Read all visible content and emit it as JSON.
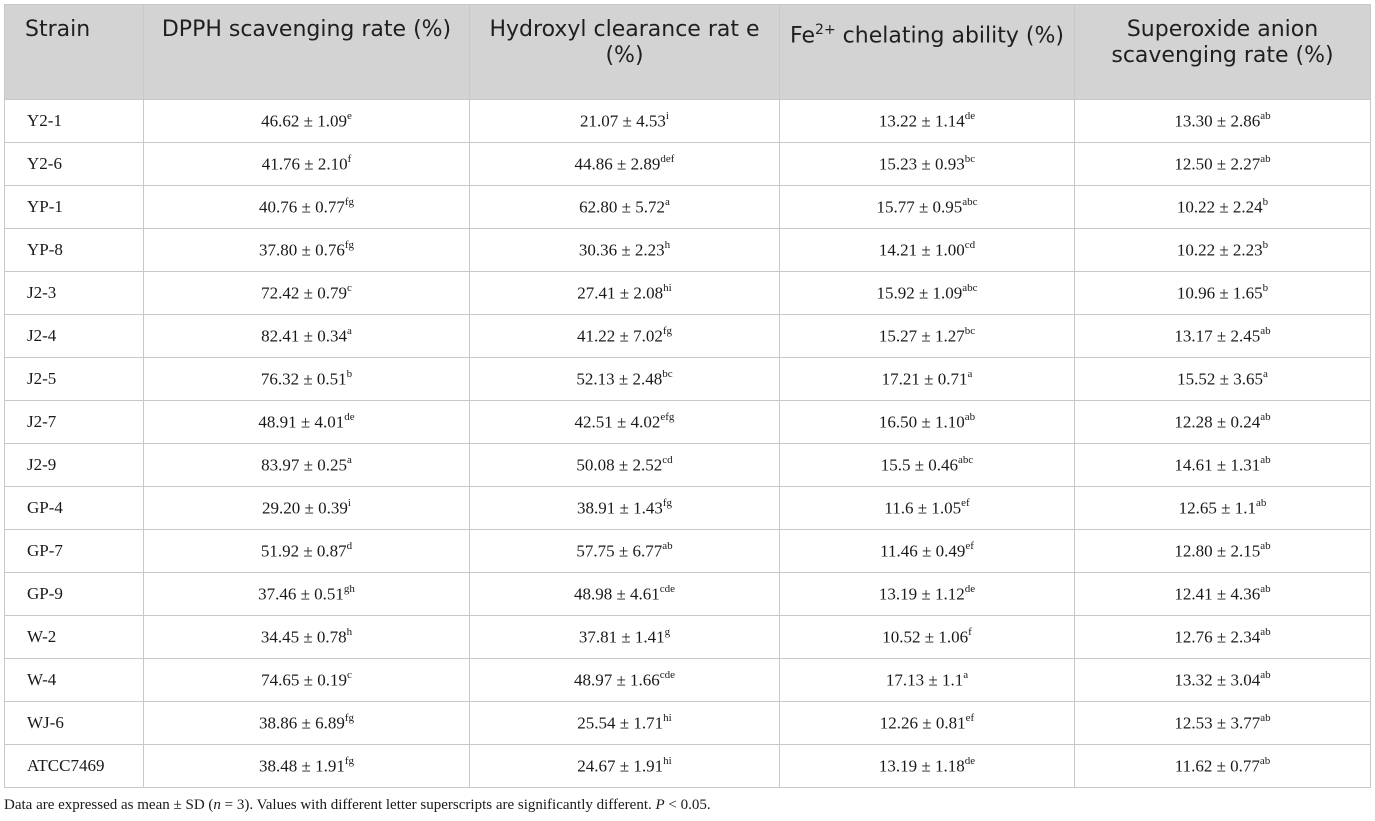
{
  "table": {
    "headers": [
      {
        "pre": "Strain",
        "sup": "",
        "post": ""
      },
      {
        "pre": "DPPH scavenging rate (%)",
        "sup": "",
        "post": ""
      },
      {
        "pre": "Hydroxyl clearance rat e (%)",
        "sup": "",
        "post": ""
      },
      {
        "pre": "Fe",
        "sup": "2+",
        "post": " chelating ability (%)"
      },
      {
        "pre": "Superoxide anion scavenging rate (%)",
        "sup": "",
        "post": ""
      }
    ],
    "rows": [
      {
        "strain": "Y2-1",
        "cells": [
          {
            "v": "46.62 ± 1.09",
            "s": "e"
          },
          {
            "v": "21.07 ± 4.53",
            "s": "i"
          },
          {
            "v": "13.22 ± 1.14",
            "s": "de"
          },
          {
            "v": "13.30 ± 2.86",
            "s": "ab"
          }
        ]
      },
      {
        "strain": "Y2-6",
        "cells": [
          {
            "v": "41.76 ± 2.10",
            "s": "f"
          },
          {
            "v": "44.86 ± 2.89",
            "s": "def"
          },
          {
            "v": "15.23 ± 0.93",
            "s": "bc"
          },
          {
            "v": "12.50 ± 2.27",
            "s": "ab"
          }
        ]
      },
      {
        "strain": "YP-1",
        "cells": [
          {
            "v": "40.76 ± 0.77",
            "s": "fg"
          },
          {
            "v": "62.80 ± 5.72",
            "s": "a"
          },
          {
            "v": "15.77 ± 0.95",
            "s": "abc"
          },
          {
            "v": "10.22 ± 2.24",
            "s": "b"
          }
        ]
      },
      {
        "strain": "YP-8",
        "cells": [
          {
            "v": "37.80 ± 0.76",
            "s": "fg"
          },
          {
            "v": "30.36 ± 2.23",
            "s": "h"
          },
          {
            "v": "14.21 ± 1.00",
            "s": "cd"
          },
          {
            "v": "10.22 ± 2.23",
            "s": "b"
          }
        ]
      },
      {
        "strain": "J2-3",
        "cells": [
          {
            "v": "72.42 ± 0.79",
            "s": "c"
          },
          {
            "v": "27.41 ± 2.08",
            "s": "hi"
          },
          {
            "v": "15.92 ± 1.09",
            "s": "abc"
          },
          {
            "v": "10.96 ± 1.65",
            "s": "b"
          }
        ]
      },
      {
        "strain": "J2-4",
        "cells": [
          {
            "v": "82.41 ± 0.34",
            "s": "a"
          },
          {
            "v": "41.22 ± 7.02",
            "s": "fg"
          },
          {
            "v": "15.27 ± 1.27",
            "s": "bc"
          },
          {
            "v": "13.17 ± 2.45",
            "s": "ab"
          }
        ]
      },
      {
        "strain": "J2-5",
        "cells": [
          {
            "v": "76.32 ± 0.51",
            "s": "b"
          },
          {
            "v": "52.13 ± 2.48",
            "s": "bc"
          },
          {
            "v": "17.21 ± 0.71",
            "s": "a"
          },
          {
            "v": "15.52 ± 3.65",
            "s": "a"
          }
        ]
      },
      {
        "strain": "J2-7",
        "cells": [
          {
            "v": "48.91 ± 4.01",
            "s": "de"
          },
          {
            "v": "42.51 ± 4.02",
            "s": "efg"
          },
          {
            "v": "16.50 ± 1.10",
            "s": "ab"
          },
          {
            "v": "12.28 ± 0.24",
            "s": "ab"
          }
        ]
      },
      {
        "strain": "J2-9",
        "cells": [
          {
            "v": "83.97 ± 0.25",
            "s": "a"
          },
          {
            "v": "50.08 ± 2.52",
            "s": "cd"
          },
          {
            "v": "15.5 ± 0.46",
            "s": "abc"
          },
          {
            "v": "14.61 ± 1.31",
            "s": "ab"
          }
        ]
      },
      {
        "strain": "GP-4",
        "cells": [
          {
            "v": "29.20 ± 0.39",
            "s": "i"
          },
          {
            "v": "38.91 ± 1.43",
            "s": "fg"
          },
          {
            "v": "11.6 ± 1.05",
            "s": "ef"
          },
          {
            "v": "12.65 ± 1.1",
            "s": "ab"
          }
        ]
      },
      {
        "strain": "GP-7",
        "cells": [
          {
            "v": "51.92 ± 0.87",
            "s": "d"
          },
          {
            "v": "57.75 ± 6.77",
            "s": "ab"
          },
          {
            "v": "11.46 ± 0.49",
            "s": "ef"
          },
          {
            "v": "12.80 ± 2.15",
            "s": "ab"
          }
        ]
      },
      {
        "strain": "GP-9",
        "cells": [
          {
            "v": "37.46 ± 0.51",
            "s": "gh"
          },
          {
            "v": "48.98 ± 4.61",
            "s": "cde"
          },
          {
            "v": "13.19 ± 1.12",
            "s": "de"
          },
          {
            "v": "12.41 ± 4.36",
            "s": "ab"
          }
        ]
      },
      {
        "strain": "W-2",
        "cells": [
          {
            "v": "34.45 ± 0.78",
            "s": "h"
          },
          {
            "v": "37.81 ± 1.41",
            "s": "g"
          },
          {
            "v": "10.52 ± 1.06",
            "s": "f"
          },
          {
            "v": "12.76 ± 2.34",
            "s": "ab"
          }
        ]
      },
      {
        "strain": "W-4",
        "cells": [
          {
            "v": "74.65 ± 0.19",
            "s": "c"
          },
          {
            "v": "48.97 ± 1.66",
            "s": "cde"
          },
          {
            "v": "17.13 ± 1.1",
            "s": "a"
          },
          {
            "v": "13.32 ± 3.04",
            "s": "ab"
          }
        ]
      },
      {
        "strain": "WJ-6",
        "cells": [
          {
            "v": "38.86 ± 6.89",
            "s": "fg"
          },
          {
            "v": "25.54 ± 1.71",
            "s": "hi"
          },
          {
            "v": "12.26 ± 0.81",
            "s": "ef"
          },
          {
            "v": "12.53 ± 3.77",
            "s": "ab"
          }
        ]
      },
      {
        "strain": "ATCC7469",
        "cells": [
          {
            "v": "38.48 ± 1.91",
            "s": "fg"
          },
          {
            "v": "24.67 ± 1.91",
            "s": "hi"
          },
          {
            "v": "13.19 ± 1.18",
            "s": "de"
          },
          {
            "v": "11.62 ± 0.77",
            "s": "ab"
          }
        ]
      }
    ]
  },
  "footnote": {
    "pre": "Data are expressed as mean ± SD (",
    "n": "n",
    "mid": " = 3). Values with different letter superscripts are significantly different. ",
    "p": "P",
    "post": " < 0.05."
  }
}
